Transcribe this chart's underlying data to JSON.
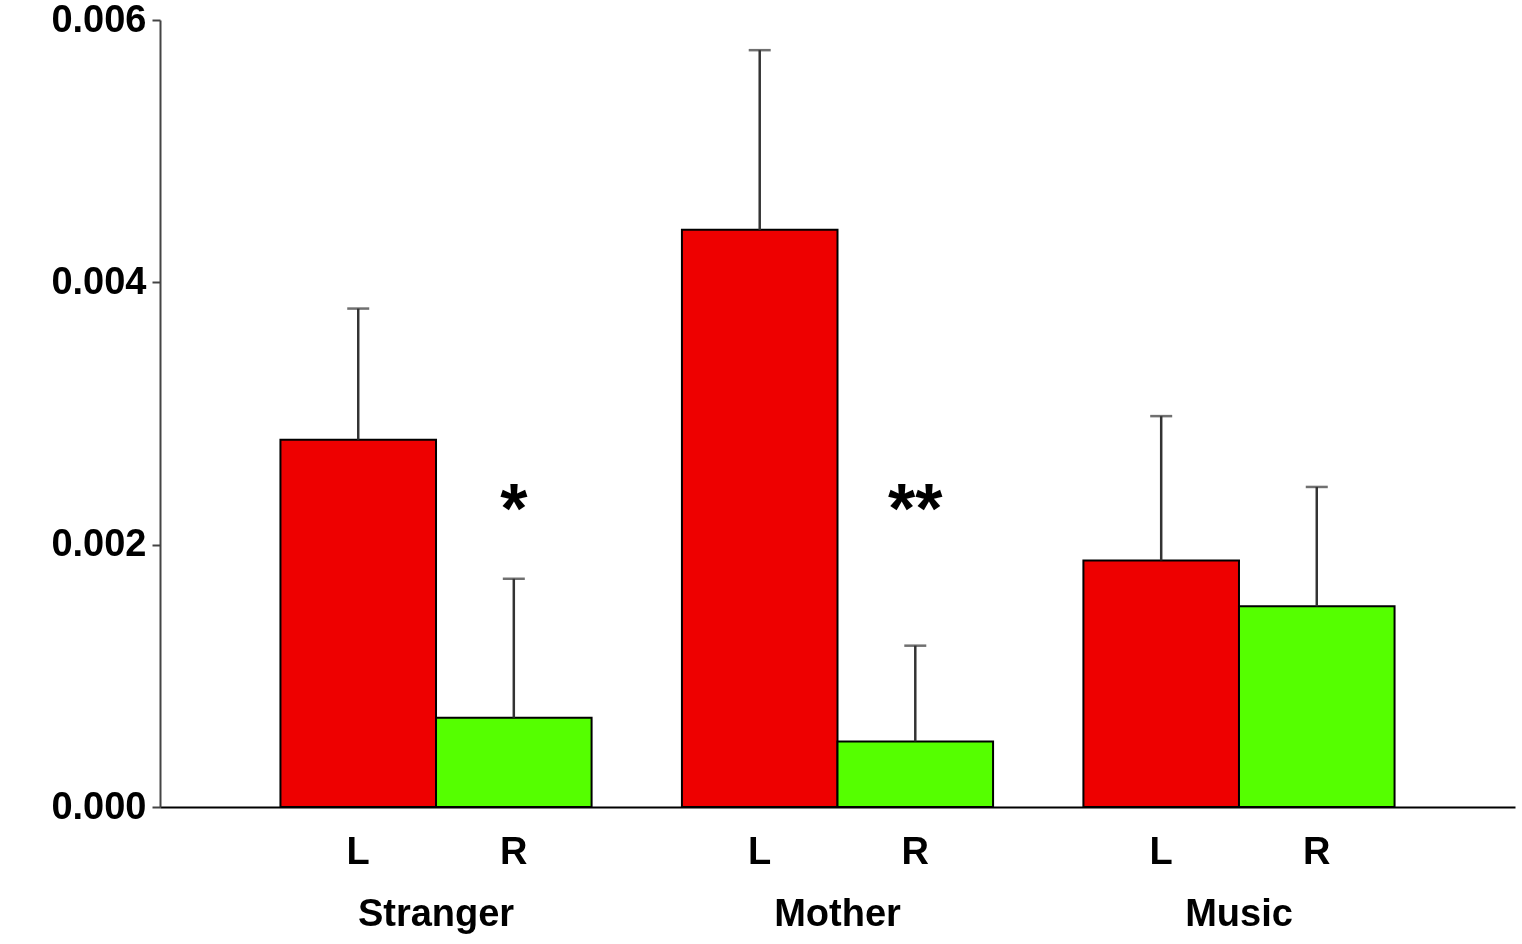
{
  "chart_data": {
    "type": "bar",
    "categories": [
      "Stranger",
      "Mother",
      "Music"
    ],
    "series": [
      {
        "name": "L",
        "color": "#ee0000",
        "values": [
          0.0028,
          0.0044,
          0.00188
        ],
        "errors": [
          [
            0.0028,
            0.0038
          ],
          [
            0.0044,
            0.00577
          ],
          [
            0.00188,
            0.00298
          ]
        ]
      },
      {
        "name": "R",
        "color": "#55ff00",
        "values": [
          0.00068,
          0.0005,
          0.00153
        ],
        "errors": [
          [
            0.00068,
            0.00174
          ],
          [
            0.0005,
            0.00123
          ],
          [
            0.00153,
            0.00244
          ]
        ]
      }
    ],
    "ylim": [
      0,
      0.006
    ],
    "yticks": [
      {
        "value": 0,
        "label": "0.000"
      },
      {
        "value": 0.002,
        "label": "0.002"
      },
      {
        "value": 0.004,
        "label": "0.004"
      },
      {
        "value": 0.006,
        "label": "0.006"
      }
    ],
    "annotations": [
      {
        "text": "*",
        "x": "Stranger",
        "y": 0.00225
      },
      {
        "text": "**",
        "x": "Mother",
        "y": 0.00225
      }
    ],
    "grid": false
  }
}
